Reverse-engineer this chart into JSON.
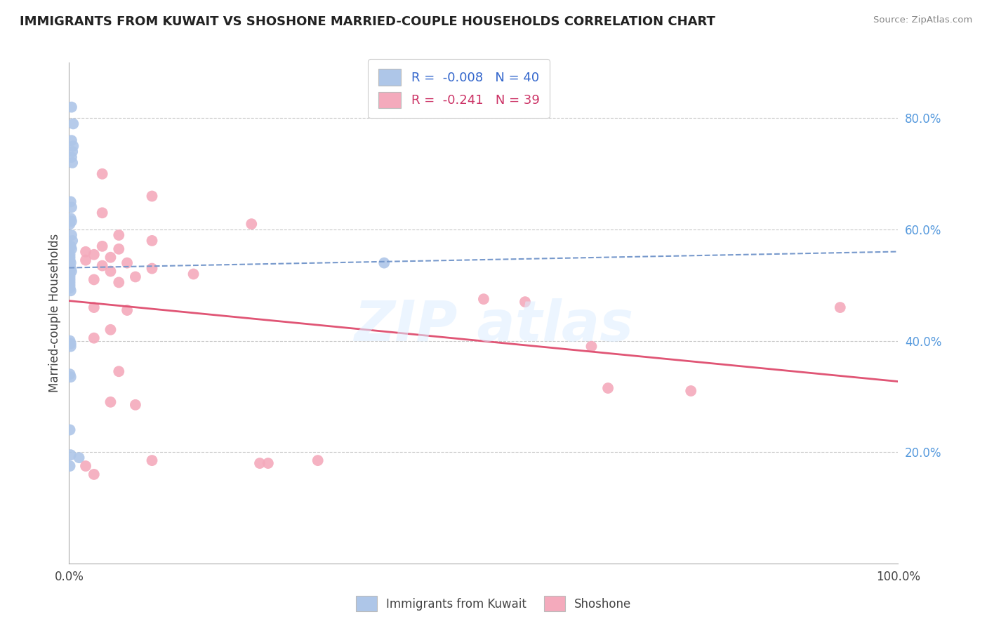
{
  "title": "IMMIGRANTS FROM KUWAIT VS SHOSHONE MARRIED-COUPLE HOUSEHOLDS CORRELATION CHART",
  "source": "Source: ZipAtlas.com",
  "ylabel": "Married-couple Households",
  "legend_label1": "Immigrants from Kuwait",
  "legend_label2": "Shoshone",
  "R1": "-0.008",
  "N1": "40",
  "R2": "-0.241",
  "N2": "39",
  "xlim": [
    0.0,
    1.0
  ],
  "ylim": [
    0.0,
    0.9
  ],
  "color_blue": "#aec6e8",
  "color_pink": "#f4aabc",
  "line_blue": "#7799cc",
  "line_pink": "#e05575",
  "background": "#ffffff",
  "blue_scatter": [
    [
      0.003,
      0.82
    ],
    [
      0.005,
      0.79
    ],
    [
      0.003,
      0.76
    ],
    [
      0.005,
      0.75
    ],
    [
      0.004,
      0.74
    ],
    [
      0.003,
      0.73
    ],
    [
      0.004,
      0.72
    ],
    [
      0.002,
      0.65
    ],
    [
      0.003,
      0.64
    ],
    [
      0.002,
      0.62
    ],
    [
      0.003,
      0.615
    ],
    [
      0.001,
      0.61
    ],
    [
      0.003,
      0.59
    ],
    [
      0.004,
      0.58
    ],
    [
      0.002,
      0.57
    ],
    [
      0.003,
      0.565
    ],
    [
      0.001,
      0.555
    ],
    [
      0.001,
      0.55
    ],
    [
      0.001,
      0.545
    ],
    [
      0.002,
      0.54
    ],
    [
      0.001,
      0.535
    ],
    [
      0.002,
      0.53
    ],
    [
      0.003,
      0.525
    ],
    [
      0.001,
      0.52
    ],
    [
      0.001,
      0.515
    ],
    [
      0.001,
      0.51
    ],
    [
      0.001,
      0.505
    ],
    [
      0.001,
      0.5
    ],
    [
      0.001,
      0.495
    ],
    [
      0.002,
      0.49
    ],
    [
      0.001,
      0.4
    ],
    [
      0.002,
      0.395
    ],
    [
      0.002,
      0.39
    ],
    [
      0.001,
      0.34
    ],
    [
      0.002,
      0.335
    ],
    [
      0.001,
      0.24
    ],
    [
      0.002,
      0.195
    ],
    [
      0.012,
      0.19
    ],
    [
      0.38,
      0.54
    ],
    [
      0.001,
      0.175
    ]
  ],
  "pink_scatter": [
    [
      0.04,
      0.7
    ],
    [
      0.1,
      0.66
    ],
    [
      0.04,
      0.63
    ],
    [
      0.22,
      0.61
    ],
    [
      0.06,
      0.59
    ],
    [
      0.1,
      0.58
    ],
    [
      0.04,
      0.57
    ],
    [
      0.06,
      0.565
    ],
    [
      0.02,
      0.56
    ],
    [
      0.03,
      0.555
    ],
    [
      0.05,
      0.55
    ],
    [
      0.02,
      0.545
    ],
    [
      0.07,
      0.54
    ],
    [
      0.04,
      0.535
    ],
    [
      0.1,
      0.53
    ],
    [
      0.05,
      0.525
    ],
    [
      0.15,
      0.52
    ],
    [
      0.08,
      0.515
    ],
    [
      0.03,
      0.51
    ],
    [
      0.06,
      0.505
    ],
    [
      0.03,
      0.46
    ],
    [
      0.07,
      0.455
    ],
    [
      0.05,
      0.42
    ],
    [
      0.03,
      0.405
    ],
    [
      0.06,
      0.345
    ],
    [
      0.05,
      0.29
    ],
    [
      0.08,
      0.285
    ],
    [
      0.1,
      0.185
    ],
    [
      0.02,
      0.175
    ],
    [
      0.03,
      0.16
    ],
    [
      0.23,
      0.18
    ],
    [
      0.24,
      0.18
    ],
    [
      0.3,
      0.185
    ],
    [
      0.5,
      0.475
    ],
    [
      0.55,
      0.47
    ],
    [
      0.63,
      0.39
    ],
    [
      0.65,
      0.315
    ],
    [
      0.75,
      0.31
    ],
    [
      0.93,
      0.46
    ]
  ]
}
